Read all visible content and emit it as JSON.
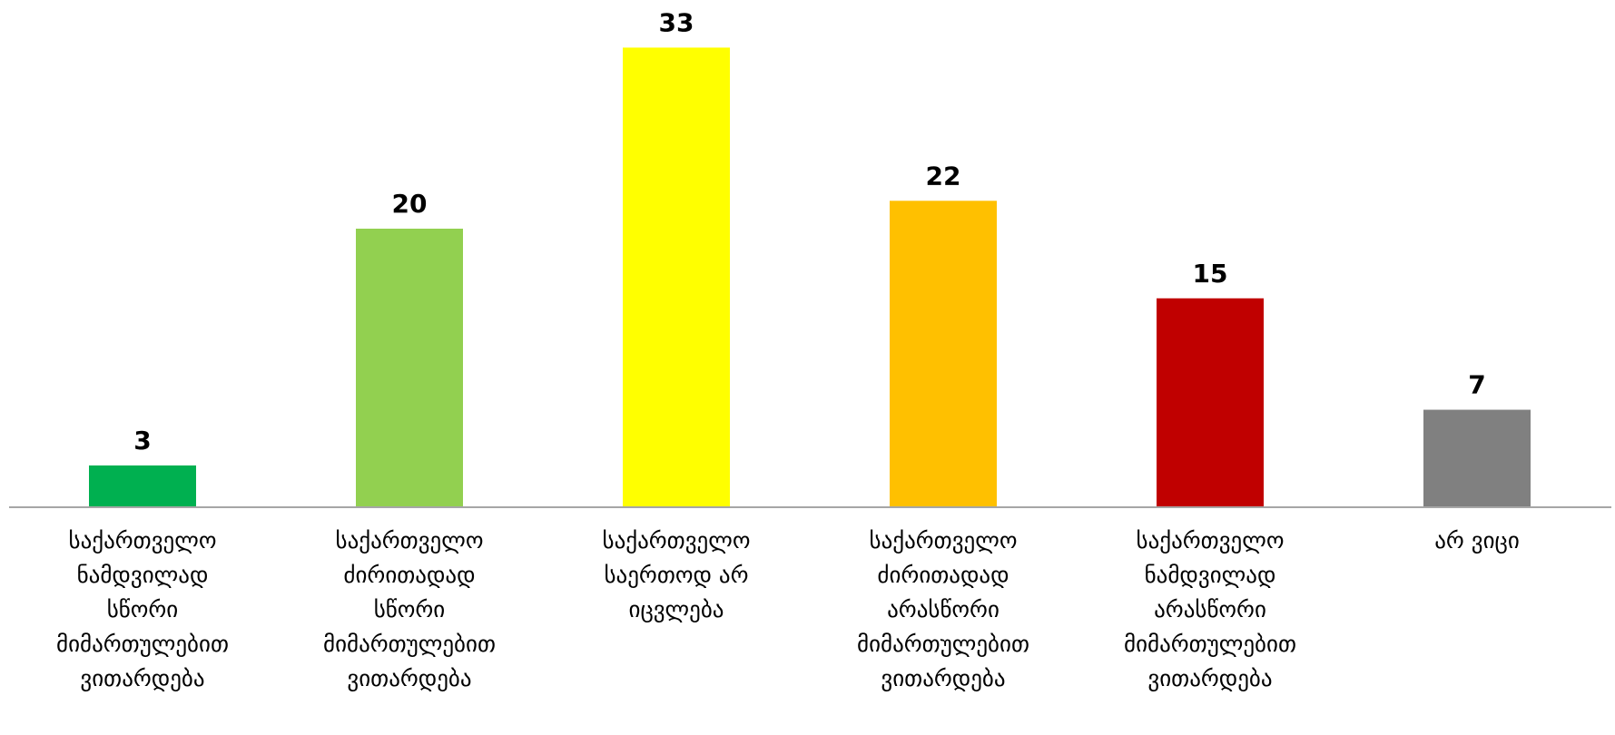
{
  "chart_data": {
    "type": "bar",
    "title": "",
    "xlabel": "",
    "ylabel": "",
    "ylim": [
      0,
      33
    ],
    "grid": false,
    "legend": "none",
    "categories": [
      "საქართველო ნამდვილად სწორი მიმართულებით ვითარდება",
      "საქართველო ძირითადად სწორი მიმართულებით ვითარდება",
      "საქართველო საერთოდ არ იცვლება",
      "საქართველო ძირითადად არასწორი მიმართულებით ვითარდება",
      "საქართველო ნამდვილად არასწორი მიმართულებით ვითარდება",
      "არ ვიცი"
    ],
    "category_lines": [
      [
        "საქართველო",
        "ნამდვილად",
        "სწორი",
        "მიმართულებით",
        "ვითარდება"
      ],
      [
        "საქართველო",
        "ძირითადად",
        "სწორი",
        "მიმართულებით",
        "ვითარდება"
      ],
      [
        "საქართველო",
        "საერთოდ არ",
        "იცვლება"
      ],
      [
        "საქართველო",
        "ძირითადად",
        "არასწორი",
        "მიმართულებით",
        "ვითარდება"
      ],
      [
        "საქართველო",
        "ნამდვილად",
        "არასწორი",
        "მიმართულებით",
        "ვითარდება"
      ],
      [
        "არ ვიცი"
      ]
    ],
    "values": [
      3,
      20,
      33,
      22,
      15,
      7
    ],
    "colors": [
      "#00b050",
      "#92d050",
      "#ffff00",
      "#ffc000",
      "#c00000",
      "#808080"
    ]
  }
}
